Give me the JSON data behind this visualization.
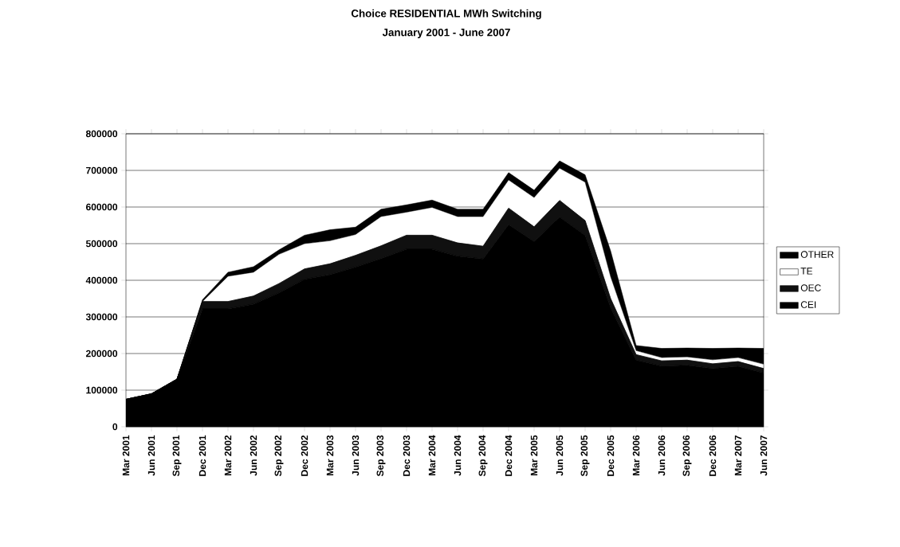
{
  "chart_data": {
    "type": "area",
    "stacked": true,
    "title": "Choice RESIDENTIAL MWh Switching",
    "subtitle": "January 2001 - June 2007",
    "categories": [
      "Mar 2001",
      "Jun 2001",
      "Sep 2001",
      "Dec 2001",
      "Mar 2002",
      "Jun 2002",
      "Sep 2002",
      "Dec 2002",
      "Mar 2003",
      "Jun 2003",
      "Sep 2003",
      "Dec 2003",
      "Mar 2004",
      "Jun 2004",
      "Sep 2004",
      "Dec 2004",
      "Mar 2005",
      "Jun 2005",
      "Sep 2005",
      "Dec 2005",
      "Mar 2006",
      "Jun 2006",
      "Sep 2006",
      "Dec 2006",
      "Mar 2007",
      "Jun 2007"
    ],
    "series": [
      {
        "name": "CEI",
        "color": "#000000",
        "values": [
          75000,
          90000,
          130000,
          322000,
          322000,
          335000,
          366000,
          403000,
          415000,
          436000,
          459000,
          485000,
          485000,
          466000,
          458000,
          552000,
          506000,
          573000,
          523000,
          325000,
          182000,
          166000,
          168000,
          159000,
          165000,
          147000
        ]
      },
      {
        "name": "OEC",
        "color": "#101010",
        "values": [
          0,
          0,
          0,
          20000,
          20000,
          22000,
          25000,
          28000,
          30000,
          32000,
          35000,
          38000,
          38000,
          36000,
          35000,
          45000,
          40000,
          45000,
          40000,
          25000,
          15000,
          14000,
          14000,
          13000,
          13000,
          12000
        ]
      },
      {
        "name": "TE",
        "color": "#ffffff",
        "values": [
          0,
          0,
          0,
          0,
          69000,
          65000,
          80000,
          69000,
          63000,
          57000,
          80000,
          63000,
          76000,
          72000,
          81000,
          77000,
          80000,
          88000,
          105000,
          60000,
          11000,
          9000,
          9000,
          11000,
          11000,
          12000
        ]
      },
      {
        "name": "OTHER",
        "color": "#000000",
        "values": [
          0,
          0,
          0,
          5000,
          11000,
          15000,
          12000,
          23000,
          30000,
          20000,
          20000,
          20000,
          20000,
          20000,
          20000,
          20000,
          20000,
          20000,
          20000,
          70000,
          14000,
          25000,
          24000,
          31000,
          26000,
          43000
        ]
      }
    ],
    "ylim": [
      0,
      800000
    ],
    "yticks": [
      0,
      100000,
      200000,
      300000,
      400000,
      500000,
      600000,
      700000,
      800000
    ],
    "grid": "y",
    "legend": "right"
  }
}
